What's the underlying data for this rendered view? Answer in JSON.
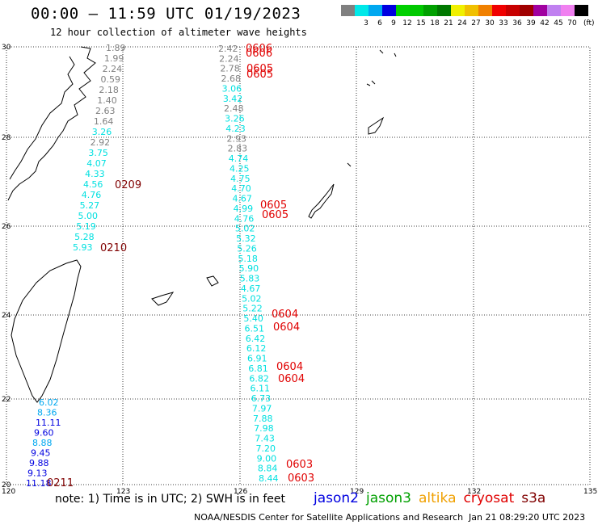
{
  "header": {
    "title": "00:00 – 11:59 UTC 01/19/2023",
    "subtitle": "12 hour collection of altimeter wave heights"
  },
  "colorbar": {
    "unit": "(ft)",
    "bins": [
      {
        "label": "",
        "color": "#808080"
      },
      {
        "label": "3",
        "color": "#00e8e8"
      },
      {
        "label": "6",
        "color": "#00a8f0"
      },
      {
        "label": "9",
        "color": "#0000e0"
      },
      {
        "label": "12",
        "color": "#00d000"
      },
      {
        "label": "15",
        "color": "#00c800"
      },
      {
        "label": "18",
        "color": "#00a000"
      },
      {
        "label": "21",
        "color": "#007800"
      },
      {
        "label": "24",
        "color": "#f0f000"
      },
      {
        "label": "27",
        "color": "#f0c000"
      },
      {
        "label": "30",
        "color": "#f08000"
      },
      {
        "label": "33",
        "color": "#f00000"
      },
      {
        "label": "36",
        "color": "#c80000"
      },
      {
        "label": "39",
        "color": "#a00000"
      },
      {
        "label": "42",
        "color": "#a000a0"
      },
      {
        "label": "45",
        "color": "#c080f0"
      },
      {
        "label": "70",
        "color": "#f080f0"
      },
      {
        "label": "",
        "color": "#000000"
      }
    ]
  },
  "axes": {
    "lon_ticks": [
      "120",
      "123",
      "126",
      "129",
      "132",
      "135"
    ],
    "lat_ticks": [
      "30",
      "28",
      "26",
      "24",
      "22",
      "20"
    ]
  },
  "tracks": {
    "left": [
      {
        "v": "1.89",
        "c": "#808080"
      },
      {
        "v": "1.99",
        "c": "#808080"
      },
      {
        "v": "2.24",
        "c": "#808080"
      },
      {
        "v": "0.59",
        "c": "#808080"
      },
      {
        "v": "2.18",
        "c": "#808080"
      },
      {
        "v": "1.40",
        "c": "#808080"
      },
      {
        "v": "2.63",
        "c": "#808080"
      },
      {
        "v": "1.64",
        "c": "#808080"
      },
      {
        "v": "3.26",
        "c": "#00e0e0"
      },
      {
        "v": "2.92",
        "c": "#808080"
      },
      {
        "v": "3.75",
        "c": "#00e0e0"
      },
      {
        "v": "4.07",
        "c": "#00e0e0"
      },
      {
        "v": "4.33",
        "c": "#00e0e0"
      },
      {
        "v": "4.56",
        "c": "#00e0e0"
      },
      {
        "v": "4.76",
        "c": "#00e0e0"
      },
      {
        "v": "5.27",
        "c": "#00e0e0"
      },
      {
        "v": "5.00",
        "c": "#00e0e0"
      },
      {
        "v": "5.19",
        "c": "#00e0e0"
      },
      {
        "v": "5.28",
        "c": "#00e0e0"
      },
      {
        "v": "5.93",
        "c": "#00e0e0"
      }
    ],
    "left_bottom": [
      {
        "v": "6.02",
        "c": "#00a8f0"
      },
      {
        "v": "8.36",
        "c": "#00a8f0"
      },
      {
        "v": "11.11",
        "c": "#0000e0"
      },
      {
        "v": "9.60",
        "c": "#0000e0"
      },
      {
        "v": "8.88",
        "c": "#00a8f0"
      },
      {
        "v": "9.45",
        "c": "#0000e0"
      },
      {
        "v": "9.88",
        "c": "#0000e0"
      },
      {
        "v": "9.13",
        "c": "#0000e0"
      },
      {
        "v": "11.18",
        "c": "#0000e0"
      }
    ],
    "middle": [
      {
        "v": "2.42",
        "c": "#808080"
      },
      {
        "v": "2.24",
        "c": "#808080"
      },
      {
        "v": "2.78",
        "c": "#808080"
      },
      {
        "v": "2.68",
        "c": "#808080"
      },
      {
        "v": "3.06",
        "c": "#00e0e0"
      },
      {
        "v": "3.42",
        "c": "#00e0e0"
      },
      {
        "v": "2.48",
        "c": "#808080"
      },
      {
        "v": "3.26",
        "c": "#00e0e0"
      },
      {
        "v": "4.23",
        "c": "#00e0e0"
      },
      {
        "v": "2.93",
        "c": "#808080"
      },
      {
        "v": "2.83",
        "c": "#808080"
      },
      {
        "v": "4.74",
        "c": "#00e0e0"
      },
      {
        "v": "4.25",
        "c": "#00e0e0"
      },
      {
        "v": "4.75",
        "c": "#00e0e0"
      },
      {
        "v": "4.70",
        "c": "#00e0e0"
      },
      {
        "v": "4.67",
        "c": "#00e0e0"
      },
      {
        "v": "4.99",
        "c": "#00e0e0"
      },
      {
        "v": "4.76",
        "c": "#00e0e0"
      },
      {
        "v": "5.02",
        "c": "#00e0e0"
      },
      {
        "v": "5.32",
        "c": "#00e0e0"
      },
      {
        "v": "5.26",
        "c": "#00e0e0"
      },
      {
        "v": "5.18",
        "c": "#00e0e0"
      },
      {
        "v": "5.90",
        "c": "#00e0e0"
      },
      {
        "v": "5.83",
        "c": "#00e0e0"
      },
      {
        "v": "4.67",
        "c": "#00e0e0"
      },
      {
        "v": "5.02",
        "c": "#00e0e0"
      },
      {
        "v": "5.22",
        "c": "#00e0e0"
      },
      {
        "v": "5.40",
        "c": "#00e0e0"
      },
      {
        "v": "6.51",
        "c": "#00e0e0"
      },
      {
        "v": "6.42",
        "c": "#00e0e0"
      },
      {
        "v": "6.12",
        "c": "#00e0e0"
      },
      {
        "v": "6.91",
        "c": "#00e0e0"
      },
      {
        "v": "6.81",
        "c": "#00e0e0"
      },
      {
        "v": "6.82",
        "c": "#00e0e0"
      },
      {
        "v": "6.11",
        "c": "#00e0e0"
      },
      {
        "v": "6.73",
        "c": "#00e0e0"
      },
      {
        "v": "7.97",
        "c": "#00e0e0"
      },
      {
        "v": "7.88",
        "c": "#00e0e0"
      },
      {
        "v": "7.98",
        "c": "#00e0e0"
      },
      {
        "v": "7.43",
        "c": "#00e0e0"
      },
      {
        "v": "7.20",
        "c": "#00e0e0"
      },
      {
        "v": "9.00",
        "c": "#00e0e0"
      },
      {
        "v": "8.84",
        "c": "#00e0e0"
      },
      {
        "v": "8.44",
        "c": "#00e0e0"
      }
    ],
    "time_labels": [
      {
        "t": "0606",
        "c": "#e00000"
      },
      {
        "t": "0606",
        "c": "#e00000"
      },
      {
        "t": "0605",
        "c": "#e00000"
      },
      {
        "t": "0605",
        "c": "#e00000"
      },
      {
        "t": "0209",
        "c": "#800000"
      },
      {
        "t": "0605",
        "c": "#e00000"
      },
      {
        "t": "0605",
        "c": "#e00000"
      },
      {
        "t": "0210",
        "c": "#800000"
      },
      {
        "t": "0604",
        "c": "#e00000"
      },
      {
        "t": "0604",
        "c": "#e00000"
      },
      {
        "t": "0604",
        "c": "#e00000"
      },
      {
        "t": "0604",
        "c": "#e00000"
      },
      {
        "t": "0603",
        "c": "#e00000"
      },
      {
        "t": "0603",
        "c": "#e00000"
      },
      {
        "t": "0211",
        "c": "#800000"
      }
    ]
  },
  "footer": {
    "note": "note: 1) Time is in UTC; 2) SWH is in feet",
    "satellites": [
      {
        "name": "jason2",
        "color": "#0000e0"
      },
      {
        "name": "jason3",
        "color": "#00a000"
      },
      {
        "name": "altika",
        "color": "#f0a000"
      },
      {
        "name": "cryosat",
        "color": "#e00000"
      },
      {
        "name": "s3a",
        "color": "#800000"
      }
    ],
    "credit": "NOAA/NESDIS Center for Satellite Applications and Research",
    "stamp": "Jan 21 08:29:20 UTC 2023"
  }
}
